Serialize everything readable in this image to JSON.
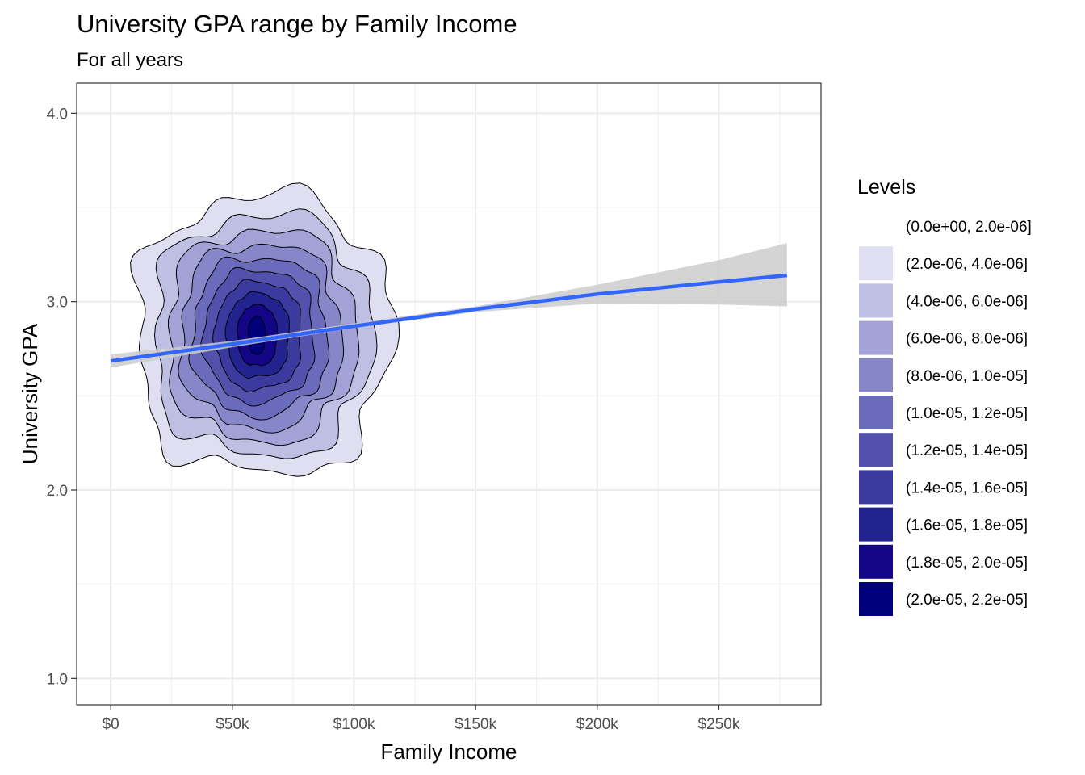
{
  "chart_data": {
    "type": "density_contour_with_trend",
    "title": "University GPA range by Family Income",
    "subtitle": "For all years",
    "xlabel": "Family Income",
    "ylabel": "University GPA",
    "xlim": [
      -14000,
      292000
    ],
    "ylim": [
      0.86,
      4.16
    ],
    "x_ticks": [
      0,
      50000,
      100000,
      150000,
      200000,
      250000
    ],
    "x_tick_labels": [
      "$0",
      "$50k",
      "$100k",
      "$150k",
      "$200k",
      "$250k"
    ],
    "x_minor_ticks": [
      25000,
      75000,
      125000,
      175000,
      225000,
      275000
    ],
    "y_ticks": [
      1.0,
      2.0,
      3.0,
      4.0
    ],
    "y_tick_labels": [
      "1.0",
      "2.0",
      "3.0",
      "4.0"
    ],
    "y_minor_ticks": [
      1.5,
      2.5,
      3.5
    ],
    "grid": true,
    "density": {
      "center_x": 60000,
      "center_y": 2.82,
      "outer_rx": 52000,
      "outer_ry": 0.74,
      "inner_rx": 3500,
      "inner_ry": 0.1
    },
    "trend_line": {
      "method": "smooth",
      "color": "#3366ff",
      "x": [
        0,
        50000,
        100000,
        150000,
        200000,
        250000,
        278000
      ],
      "y": [
        2.685,
        2.775,
        2.87,
        2.96,
        3.04,
        3.105,
        3.14
      ]
    },
    "confidence_band": {
      "color": "#cccccc",
      "x": [
        0,
        50000,
        100000,
        150000,
        200000,
        250000,
        278000
      ],
      "lower": [
        2.65,
        2.758,
        2.86,
        2.945,
        2.99,
        2.985,
        2.975
      ],
      "upper": [
        2.72,
        2.792,
        2.885,
        2.975,
        3.09,
        3.22,
        3.31
      ]
    },
    "legend": {
      "title": "Levels",
      "placement": "right",
      "entries": [
        {
          "label": "(0.0e+00, 2.0e-06]",
          "color": "#ffffff"
        },
        {
          "label": "(2.0e-06, 4.0e-06]",
          "color": "#dfdff1"
        },
        {
          "label": "(4.0e-06, 6.0e-06]",
          "color": "#bfbfe3"
        },
        {
          "label": "(6.0e-06, 8.0e-06]",
          "color": "#a2a2d6"
        },
        {
          "label": "(8.0e-06, 1.0e-05]",
          "color": "#8686c8"
        },
        {
          "label": "(1.0e-05, 1.2e-05]",
          "color": "#6b6bbb"
        },
        {
          "label": "(1.2e-05, 1.4e-05]",
          "color": "#5252ad"
        },
        {
          "label": "(1.4e-05, 1.6e-05]",
          "color": "#3b3b9f"
        },
        {
          "label": "(1.6e-05, 1.8e-05]",
          "color": "#232390"
        },
        {
          "label": "(1.8e-05, 2.0e-05]",
          "color": "#130686"
        },
        {
          "label": "(2.0e-05, 2.2e-05]",
          "color": "#00007a"
        }
      ]
    }
  }
}
